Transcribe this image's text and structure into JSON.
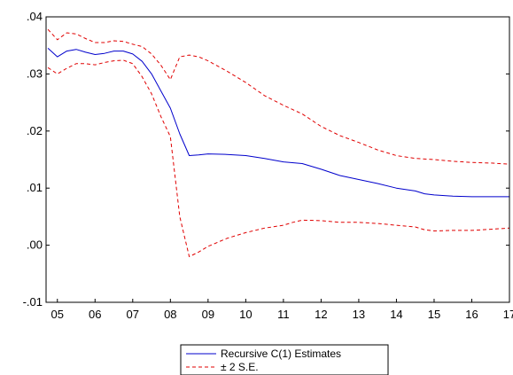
{
  "chart_data": {
    "type": "line",
    "title": "",
    "xlabel": "",
    "ylabel": "",
    "ylim": [
      -0.01,
      0.04
    ],
    "y_ticks": [
      {
        "value": 0.04,
        "label": ".04"
      },
      {
        "value": 0.03,
        "label": ".03"
      },
      {
        "value": 0.02,
        "label": ".02"
      },
      {
        "value": 0.01,
        "label": ".01"
      },
      {
        "value": 0.0,
        "label": ".00"
      },
      {
        "value": -0.01,
        "label": "-.01"
      }
    ],
    "xlim": [
      2004.7,
      2017.0
    ],
    "x_ticks": [
      {
        "value": 2005,
        "label": "05"
      },
      {
        "value": 2006,
        "label": "06"
      },
      {
        "value": 2007,
        "label": "07"
      },
      {
        "value": 2008,
        "label": "08"
      },
      {
        "value": 2009,
        "label": "09"
      },
      {
        "value": 2010,
        "label": "10"
      },
      {
        "value": 2011,
        "label": "11"
      },
      {
        "value": 2012,
        "label": "12"
      },
      {
        "value": 2013,
        "label": "13"
      },
      {
        "value": 2014,
        "label": "14"
      },
      {
        "value": 2015,
        "label": "15"
      },
      {
        "value": 2016,
        "label": "16"
      },
      {
        "value": 2017,
        "label": "17"
      }
    ],
    "legend_position": "bottom-center",
    "series": [
      {
        "name": "Recursive C(1) Estimates",
        "color": "#0000cc",
        "dash": "solid",
        "points": [
          [
            2004.75,
            0.0345
          ],
          [
            2005.0,
            0.033
          ],
          [
            2005.25,
            0.034
          ],
          [
            2005.5,
            0.0343
          ],
          [
            2005.75,
            0.0338
          ],
          [
            2006.0,
            0.0334
          ],
          [
            2006.25,
            0.0336
          ],
          [
            2006.5,
            0.034
          ],
          [
            2006.75,
            0.034
          ],
          [
            2007.0,
            0.0335
          ],
          [
            2007.25,
            0.0322
          ],
          [
            2007.5,
            0.03
          ],
          [
            2007.75,
            0.027
          ],
          [
            2008.0,
            0.024
          ],
          [
            2008.25,
            0.0195
          ],
          [
            2008.5,
            0.0157
          ],
          [
            2008.75,
            0.0158
          ],
          [
            2009.0,
            0.016
          ],
          [
            2009.5,
            0.0159
          ],
          [
            2010.0,
            0.0157
          ],
          [
            2010.5,
            0.0152
          ],
          [
            2011.0,
            0.0146
          ],
          [
            2011.5,
            0.0143
          ],
          [
            2012.0,
            0.0133
          ],
          [
            2012.5,
            0.0122
          ],
          [
            2013.0,
            0.0115
          ],
          [
            2013.5,
            0.0108
          ],
          [
            2014.0,
            0.01
          ],
          [
            2014.5,
            0.0095
          ],
          [
            2014.75,
            0.009
          ],
          [
            2015.0,
            0.0088
          ],
          [
            2015.5,
            0.0086
          ],
          [
            2016.0,
            0.0085
          ],
          [
            2016.5,
            0.0085
          ],
          [
            2017.0,
            0.0085
          ]
        ]
      },
      {
        "name": "± 2 S.E.",
        "color": "#e00000",
        "dash": "dashed",
        "points": [
          [
            2004.75,
            0.0378
          ],
          [
            2005.0,
            0.036
          ],
          [
            2005.25,
            0.0372
          ],
          [
            2005.5,
            0.037
          ],
          [
            2005.75,
            0.0362
          ],
          [
            2006.0,
            0.0355
          ],
          [
            2006.25,
            0.0355
          ],
          [
            2006.5,
            0.0358
          ],
          [
            2006.75,
            0.0357
          ],
          [
            2007.0,
            0.0352
          ],
          [
            2007.25,
            0.0348
          ],
          [
            2007.5,
            0.0335
          ],
          [
            2007.75,
            0.0315
          ],
          [
            2008.0,
            0.029
          ],
          [
            2008.25,
            0.033
          ],
          [
            2008.5,
            0.0333
          ],
          [
            2008.75,
            0.033
          ],
          [
            2009.0,
            0.0323
          ],
          [
            2009.5,
            0.0305
          ],
          [
            2010.0,
            0.0285
          ],
          [
            2010.5,
            0.0262
          ],
          [
            2011.0,
            0.0245
          ],
          [
            2011.5,
            0.023
          ],
          [
            2012.0,
            0.0208
          ],
          [
            2012.5,
            0.0192
          ],
          [
            2013.0,
            0.018
          ],
          [
            2013.5,
            0.0167
          ],
          [
            2014.0,
            0.0157
          ],
          [
            2014.5,
            0.0152
          ],
          [
            2015.0,
            0.015
          ],
          [
            2015.5,
            0.0147
          ],
          [
            2016.0,
            0.0145
          ],
          [
            2016.5,
            0.0144
          ],
          [
            2017.0,
            0.0142
          ]
        ]
      },
      {
        "name": "",
        "color": "#e00000",
        "dash": "dashed",
        "points": [
          [
            2004.75,
            0.0311
          ],
          [
            2005.0,
            0.03
          ],
          [
            2005.25,
            0.031
          ],
          [
            2005.5,
            0.0318
          ],
          [
            2005.75,
            0.0318
          ],
          [
            2006.0,
            0.0316
          ],
          [
            2006.25,
            0.032
          ],
          [
            2006.5,
            0.0323
          ],
          [
            2006.75,
            0.0324
          ],
          [
            2007.0,
            0.0318
          ],
          [
            2007.25,
            0.0295
          ],
          [
            2007.5,
            0.0265
          ],
          [
            2007.75,
            0.0225
          ],
          [
            2008.0,
            0.019
          ],
          [
            2008.25,
            0.005
          ],
          [
            2008.5,
            -0.002
          ],
          [
            2008.75,
            -0.0012
          ],
          [
            2009.0,
            -0.0002
          ],
          [
            2009.5,
            0.0012
          ],
          [
            2010.0,
            0.0022
          ],
          [
            2010.5,
            0.003
          ],
          [
            2011.0,
            0.0035
          ],
          [
            2011.25,
            0.004
          ],
          [
            2011.5,
            0.0044
          ],
          [
            2012.0,
            0.0043
          ],
          [
            2012.5,
            0.004
          ],
          [
            2013.0,
            0.004
          ],
          [
            2013.5,
            0.0038
          ],
          [
            2014.0,
            0.0035
          ],
          [
            2014.5,
            0.0032
          ],
          [
            2014.75,
            0.0027
          ],
          [
            2015.0,
            0.0025
          ],
          [
            2015.5,
            0.0026
          ],
          [
            2016.0,
            0.0026
          ],
          [
            2016.5,
            0.0028
          ],
          [
            2017.0,
            0.003
          ]
        ]
      }
    ],
    "legend": [
      {
        "label": "Recursive C(1) Estimates",
        "color": "#0000cc",
        "dash": "solid"
      },
      {
        "label": "± 2 S.E.",
        "color": "#e00000",
        "dash": "dashed"
      }
    ]
  }
}
